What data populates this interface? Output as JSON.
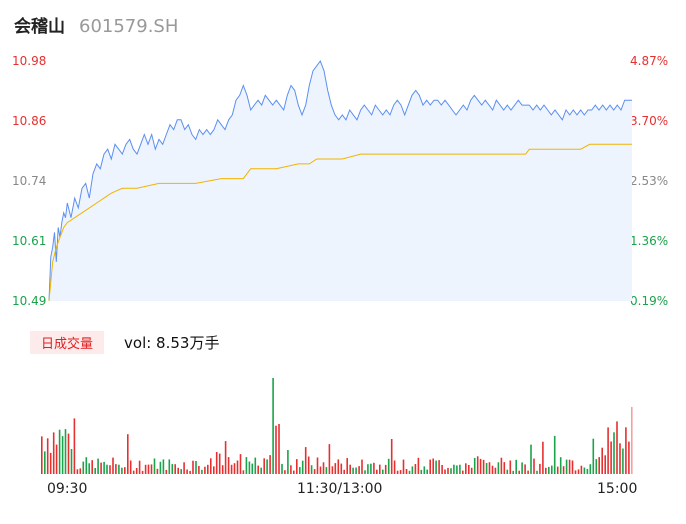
{
  "header": {
    "name": "会稽山",
    "code": "601579.SH"
  },
  "colors": {
    "price": "#5b8ff0",
    "avg": "#f0b400",
    "up": "#e53030",
    "down": "#1aa34a",
    "neutral": "#888888",
    "fill": "#eef4fe"
  },
  "chart_data": {
    "type": "line",
    "title": "",
    "price_axis": {
      "ticks": [
        "10.98",
        "10.86",
        "10.74",
        "10.61",
        "10.49"
      ],
      "min": 10.49,
      "max": 10.98
    },
    "pct_axis": {
      "ticks": [
        "4.87%",
        "3.70%",
        "2.53%",
        "1.36%",
        "0.19%"
      ]
    },
    "x_ticks": [
      "09:30",
      "11:30/13:00",
      "15:00"
    ],
    "price_points": [
      [
        0,
        10.49
      ],
      [
        1,
        10.58
      ],
      [
        2,
        10.6
      ],
      [
        3,
        10.63
      ],
      [
        4,
        10.57
      ],
      [
        5,
        10.64
      ],
      [
        6,
        10.62
      ],
      [
        7,
        10.65
      ],
      [
        8,
        10.67
      ],
      [
        9,
        10.66
      ],
      [
        10,
        10.69
      ],
      [
        12,
        10.66
      ],
      [
        14,
        10.7
      ],
      [
        16,
        10.68
      ],
      [
        18,
        10.72
      ],
      [
        20,
        10.73
      ],
      [
        22,
        10.7
      ],
      [
        24,
        10.75
      ],
      [
        26,
        10.77
      ],
      [
        28,
        10.76
      ],
      [
        30,
        10.79
      ],
      [
        32,
        10.8
      ],
      [
        34,
        10.78
      ],
      [
        36,
        10.81
      ],
      [
        38,
        10.8
      ],
      [
        40,
        10.79
      ],
      [
        42,
        10.81
      ],
      [
        44,
        10.82
      ],
      [
        46,
        10.8
      ],
      [
        48,
        10.79
      ],
      [
        50,
        10.81
      ],
      [
        52,
        10.83
      ],
      [
        54,
        10.81
      ],
      [
        56,
        10.83
      ],
      [
        58,
        10.8
      ],
      [
        60,
        10.82
      ],
      [
        62,
        10.81
      ],
      [
        64,
        10.83
      ],
      [
        66,
        10.85
      ],
      [
        68,
        10.84
      ],
      [
        70,
        10.86
      ],
      [
        72,
        10.86
      ],
      [
        74,
        10.84
      ],
      [
        76,
        10.85
      ],
      [
        78,
        10.83
      ],
      [
        80,
        10.82
      ],
      [
        82,
        10.84
      ],
      [
        84,
        10.83
      ],
      [
        86,
        10.84
      ],
      [
        88,
        10.83
      ],
      [
        90,
        10.84
      ],
      [
        92,
        10.86
      ],
      [
        94,
        10.85
      ],
      [
        96,
        10.84
      ],
      [
        98,
        10.86
      ],
      [
        100,
        10.87
      ],
      [
        102,
        10.9
      ],
      [
        104,
        10.91
      ],
      [
        106,
        10.93
      ],
      [
        108,
        10.91
      ],
      [
        110,
        10.88
      ],
      [
        112,
        10.89
      ],
      [
        114,
        10.9
      ],
      [
        116,
        10.89
      ],
      [
        118,
        10.91
      ],
      [
        120,
        10.9
      ],
      [
        122,
        10.89
      ],
      [
        124,
        10.9
      ],
      [
        126,
        10.89
      ],
      [
        128,
        10.88
      ],
      [
        130,
        10.91
      ],
      [
        132,
        10.93
      ],
      [
        134,
        10.92
      ],
      [
        136,
        10.89
      ],
      [
        138,
        10.87
      ],
      [
        140,
        10.89
      ],
      [
        142,
        10.93
      ],
      [
        144,
        10.96
      ],
      [
        146,
        10.97
      ],
      [
        148,
        10.98
      ],
      [
        150,
        10.96
      ],
      [
        152,
        10.92
      ],
      [
        154,
        10.89
      ],
      [
        156,
        10.87
      ],
      [
        158,
        10.86
      ],
      [
        160,
        10.87
      ],
      [
        162,
        10.86
      ],
      [
        164,
        10.88
      ],
      [
        166,
        10.87
      ],
      [
        168,
        10.86
      ],
      [
        170,
        10.88
      ],
      [
        172,
        10.89
      ],
      [
        174,
        10.88
      ],
      [
        176,
        10.87
      ],
      [
        178,
        10.89
      ],
      [
        180,
        10.88
      ],
      [
        182,
        10.87
      ],
      [
        184,
        10.88
      ],
      [
        186,
        10.87
      ],
      [
        188,
        10.89
      ],
      [
        190,
        10.9
      ],
      [
        192,
        10.89
      ],
      [
        194,
        10.87
      ],
      [
        196,
        10.89
      ],
      [
        198,
        10.91
      ],
      [
        200,
        10.92
      ],
      [
        202,
        10.91
      ],
      [
        204,
        10.89
      ],
      [
        206,
        10.9
      ],
      [
        208,
        10.89
      ],
      [
        210,
        10.9
      ],
      [
        212,
        10.9
      ],
      [
        214,
        10.89
      ],
      [
        216,
        10.9
      ],
      [
        218,
        10.89
      ],
      [
        220,
        10.88
      ],
      [
        222,
        10.87
      ],
      [
        224,
        10.88
      ],
      [
        226,
        10.89
      ],
      [
        228,
        10.88
      ],
      [
        230,
        10.9
      ],
      [
        232,
        10.91
      ],
      [
        234,
        10.9
      ],
      [
        236,
        10.89
      ],
      [
        238,
        10.9
      ],
      [
        240,
        10.89
      ],
      [
        242,
        10.88
      ],
      [
        244,
        10.9
      ],
      [
        246,
        10.89
      ],
      [
        248,
        10.88
      ],
      [
        250,
        10.89
      ],
      [
        252,
        10.88
      ],
      [
        254,
        10.89
      ],
      [
        256,
        10.9
      ],
      [
        258,
        10.89
      ],
      [
        260,
        10.89
      ],
      [
        262,
        10.89
      ],
      [
        264,
        10.88
      ],
      [
        266,
        10.89
      ],
      [
        268,
        10.88
      ],
      [
        270,
        10.89
      ],
      [
        272,
        10.88
      ],
      [
        274,
        10.87
      ],
      [
        276,
        10.88
      ],
      [
        278,
        10.87
      ],
      [
        280,
        10.86
      ],
      [
        282,
        10.88
      ],
      [
        284,
        10.87
      ],
      [
        286,
        10.88
      ],
      [
        288,
        10.87
      ],
      [
        290,
        10.88
      ],
      [
        292,
        10.87
      ],
      [
        294,
        10.88
      ],
      [
        296,
        10.88
      ],
      [
        298,
        10.89
      ],
      [
        300,
        10.88
      ],
      [
        302,
        10.89
      ],
      [
        304,
        10.88
      ],
      [
        306,
        10.89
      ],
      [
        308,
        10.88
      ],
      [
        310,
        10.89
      ],
      [
        312,
        10.88
      ],
      [
        314,
        10.9
      ],
      [
        316,
        10.9
      ],
      [
        318,
        10.9
      ]
    ],
    "avg_points": [
      [
        0,
        10.49
      ],
      [
        2,
        10.57
      ],
      [
        4,
        10.6
      ],
      [
        6,
        10.62
      ],
      [
        8,
        10.64
      ],
      [
        10,
        10.65
      ],
      [
        14,
        10.66
      ],
      [
        18,
        10.67
      ],
      [
        22,
        10.68
      ],
      [
        26,
        10.69
      ],
      [
        30,
        10.7
      ],
      [
        34,
        10.71
      ],
      [
        40,
        10.72
      ],
      [
        48,
        10.72
      ],
      [
        60,
        10.73
      ],
      [
        80,
        10.73
      ],
      [
        94,
        10.74
      ],
      [
        106,
        10.74
      ],
      [
        110,
        10.76
      ],
      [
        124,
        10.76
      ],
      [
        136,
        10.77
      ],
      [
        142,
        10.77
      ],
      [
        146,
        10.78
      ],
      [
        160,
        10.78
      ],
      [
        170,
        10.79
      ],
      [
        200,
        10.79
      ],
      [
        230,
        10.79
      ],
      [
        260,
        10.79
      ],
      [
        262,
        10.8
      ],
      [
        290,
        10.8
      ],
      [
        295,
        10.81
      ],
      [
        318,
        10.81
      ]
    ],
    "x_range": [
      0,
      318
    ],
    "volume_label": "日成交量",
    "volume_text": "vol: 8.53万手"
  }
}
